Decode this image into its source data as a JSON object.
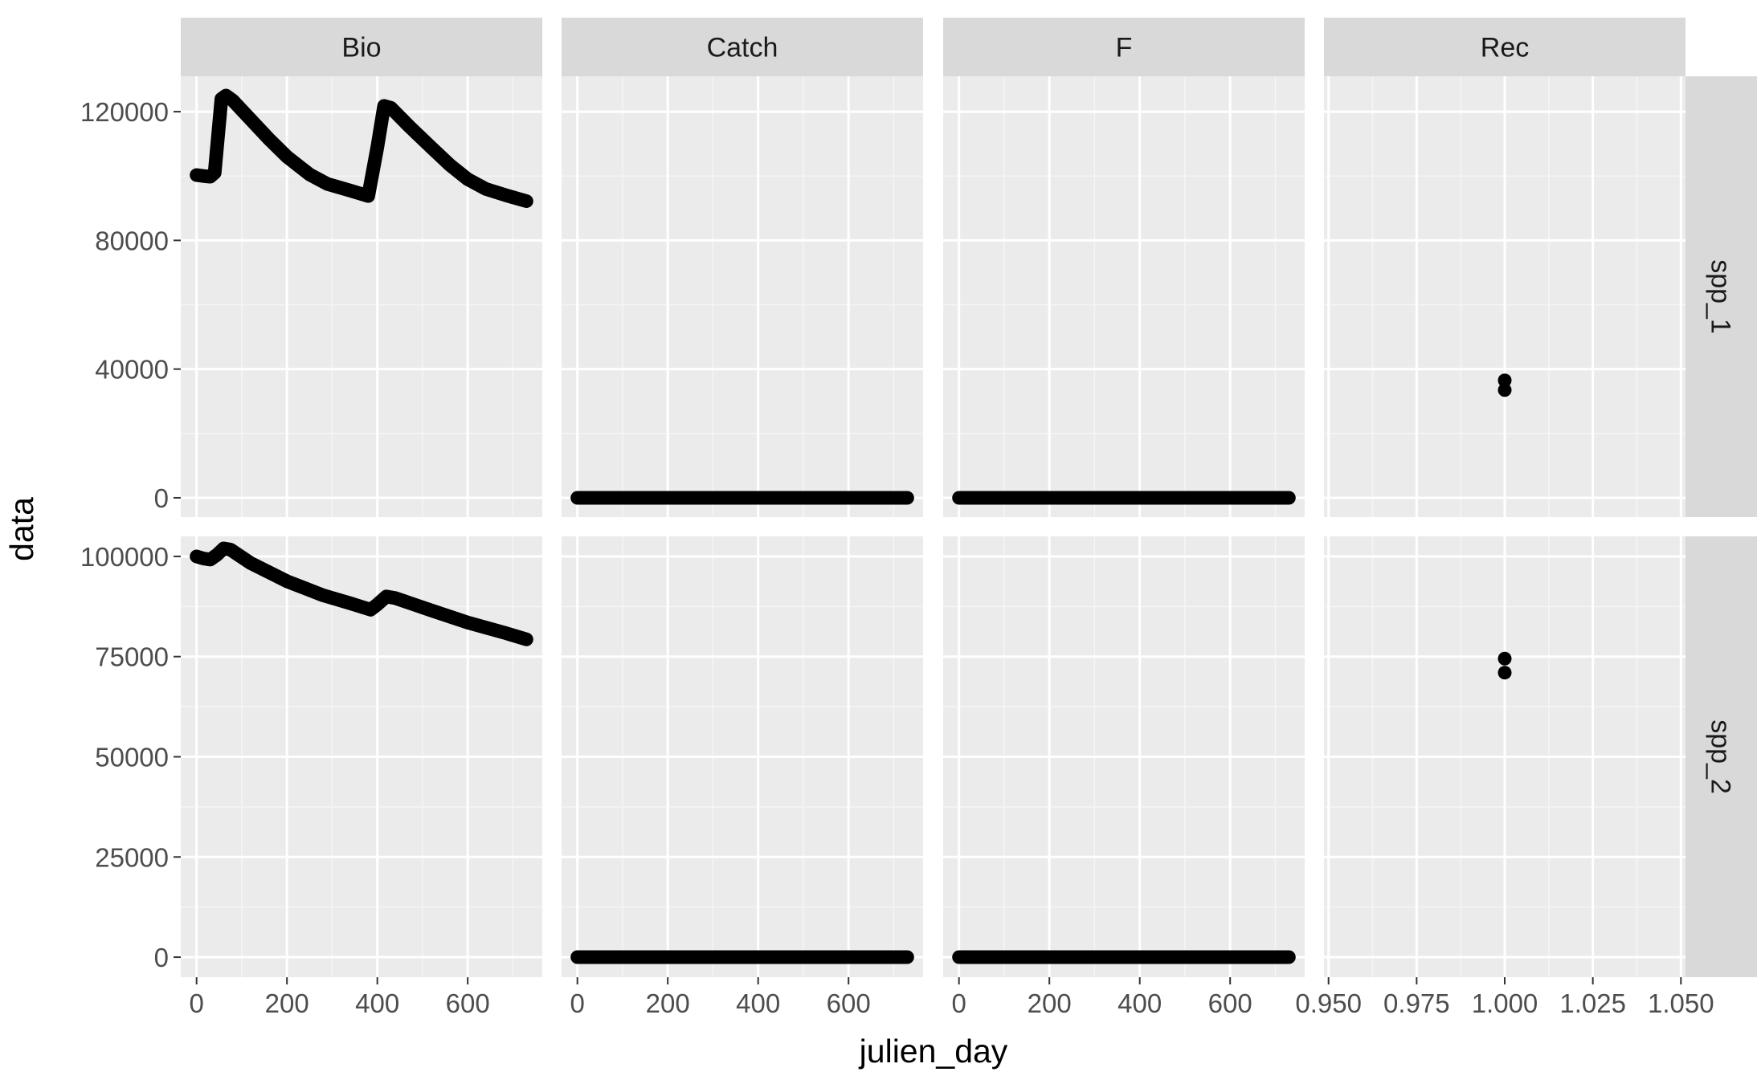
{
  "chart_data": {
    "type": "scatter",
    "xlabel": "julien_day",
    "ylabel": "data",
    "facet_columns": [
      "Bio",
      "Catch",
      "F",
      "Rec"
    ],
    "facet_rows": [
      "spp_1",
      "spp_2"
    ],
    "x_scales": {
      "Bio": {
        "lim": [
          -35,
          765
        ],
        "ticks": [
          0,
          200,
          400,
          600
        ],
        "tick_labels": [
          "0",
          "200",
          "400",
          "600"
        ]
      },
      "Catch": {
        "lim": [
          -35,
          765
        ],
        "ticks": [
          0,
          200,
          400,
          600
        ],
        "tick_labels": [
          "0",
          "200",
          "400",
          "600"
        ]
      },
      "F": {
        "lim": [
          -35,
          765
        ],
        "ticks": [
          0,
          200,
          400,
          600
        ],
        "tick_labels": [
          "0",
          "200",
          "400",
          "600"
        ]
      },
      "Rec": {
        "lim": [
          0.9487,
          1.0513
        ],
        "ticks": [
          0.95,
          0.975,
          1.0,
          1.025,
          1.05
        ],
        "tick_labels": [
          "0.950",
          "0.975",
          "1.000",
          "1.025",
          "1.050"
        ]
      }
    },
    "y_scales": {
      "spp_1": {
        "lim": [
          -6000,
          131000
        ],
        "ticks": [
          0,
          40000,
          80000,
          120000
        ],
        "tick_labels": [
          "0",
          "40000",
          "80000",
          "120000"
        ]
      },
      "spp_2": {
        "lim": [
          -5000,
          105000
        ],
        "ticks": [
          0,
          25000,
          50000,
          75000,
          100000
        ],
        "tick_labels": [
          "0",
          "25000",
          "50000",
          "75000",
          "100000"
        ]
      }
    },
    "panels": [
      {
        "col": "Bio",
        "row": "spp_1",
        "mode": "path",
        "points": [
          [
            0,
            100300
          ],
          [
            15,
            100000
          ],
          [
            30,
            99800
          ],
          [
            40,
            101000
          ],
          [
            55,
            124000
          ],
          [
            65,
            125000
          ],
          [
            80,
            123500
          ],
          [
            120,
            117500
          ],
          [
            160,
            111500
          ],
          [
            200,
            106000
          ],
          [
            250,
            100500
          ],
          [
            290,
            97500
          ],
          [
            340,
            95500
          ],
          [
            380,
            93800
          ],
          [
            400,
            109000
          ],
          [
            415,
            121800
          ],
          [
            430,
            121200
          ],
          [
            470,
            115500
          ],
          [
            520,
            108800
          ],
          [
            560,
            103500
          ],
          [
            600,
            99000
          ],
          [
            640,
            96000
          ],
          [
            690,
            93800
          ],
          [
            730,
            92200
          ]
        ]
      },
      {
        "col": "Catch",
        "row": "spp_1",
        "mode": "path",
        "points": [
          [
            0,
            0
          ],
          [
            730,
            0
          ]
        ]
      },
      {
        "col": "F",
        "row": "spp_1",
        "mode": "path",
        "points": [
          [
            0,
            0
          ],
          [
            730,
            0
          ]
        ]
      },
      {
        "col": "Rec",
        "row": "spp_1",
        "mode": "points",
        "points": [
          [
            1.0,
            36500
          ],
          [
            1.0,
            33500
          ]
        ]
      },
      {
        "col": "Bio",
        "row": "spp_2",
        "mode": "path",
        "points": [
          [
            0,
            100000
          ],
          [
            15,
            99500
          ],
          [
            30,
            99200
          ],
          [
            45,
            100400
          ],
          [
            60,
            102000
          ],
          [
            75,
            101700
          ],
          [
            120,
            98300
          ],
          [
            200,
            93800
          ],
          [
            280,
            90300
          ],
          [
            340,
            88300
          ],
          [
            385,
            86700
          ],
          [
            400,
            88000
          ],
          [
            420,
            90000
          ],
          [
            440,
            89600
          ],
          [
            520,
            86500
          ],
          [
            600,
            83500
          ],
          [
            680,
            81000
          ],
          [
            730,
            79300
          ]
        ]
      },
      {
        "col": "Catch",
        "row": "spp_2",
        "mode": "path",
        "points": [
          [
            0,
            0
          ],
          [
            730,
            0
          ]
        ]
      },
      {
        "col": "F",
        "row": "spp_2",
        "mode": "path",
        "points": [
          [
            0,
            0
          ],
          [
            730,
            0
          ]
        ]
      },
      {
        "col": "Rec",
        "row": "spp_2",
        "mode": "points",
        "points": [
          [
            1.0,
            74500
          ],
          [
            1.0,
            71000
          ]
        ]
      }
    ],
    "grid": true,
    "legend": "none"
  }
}
